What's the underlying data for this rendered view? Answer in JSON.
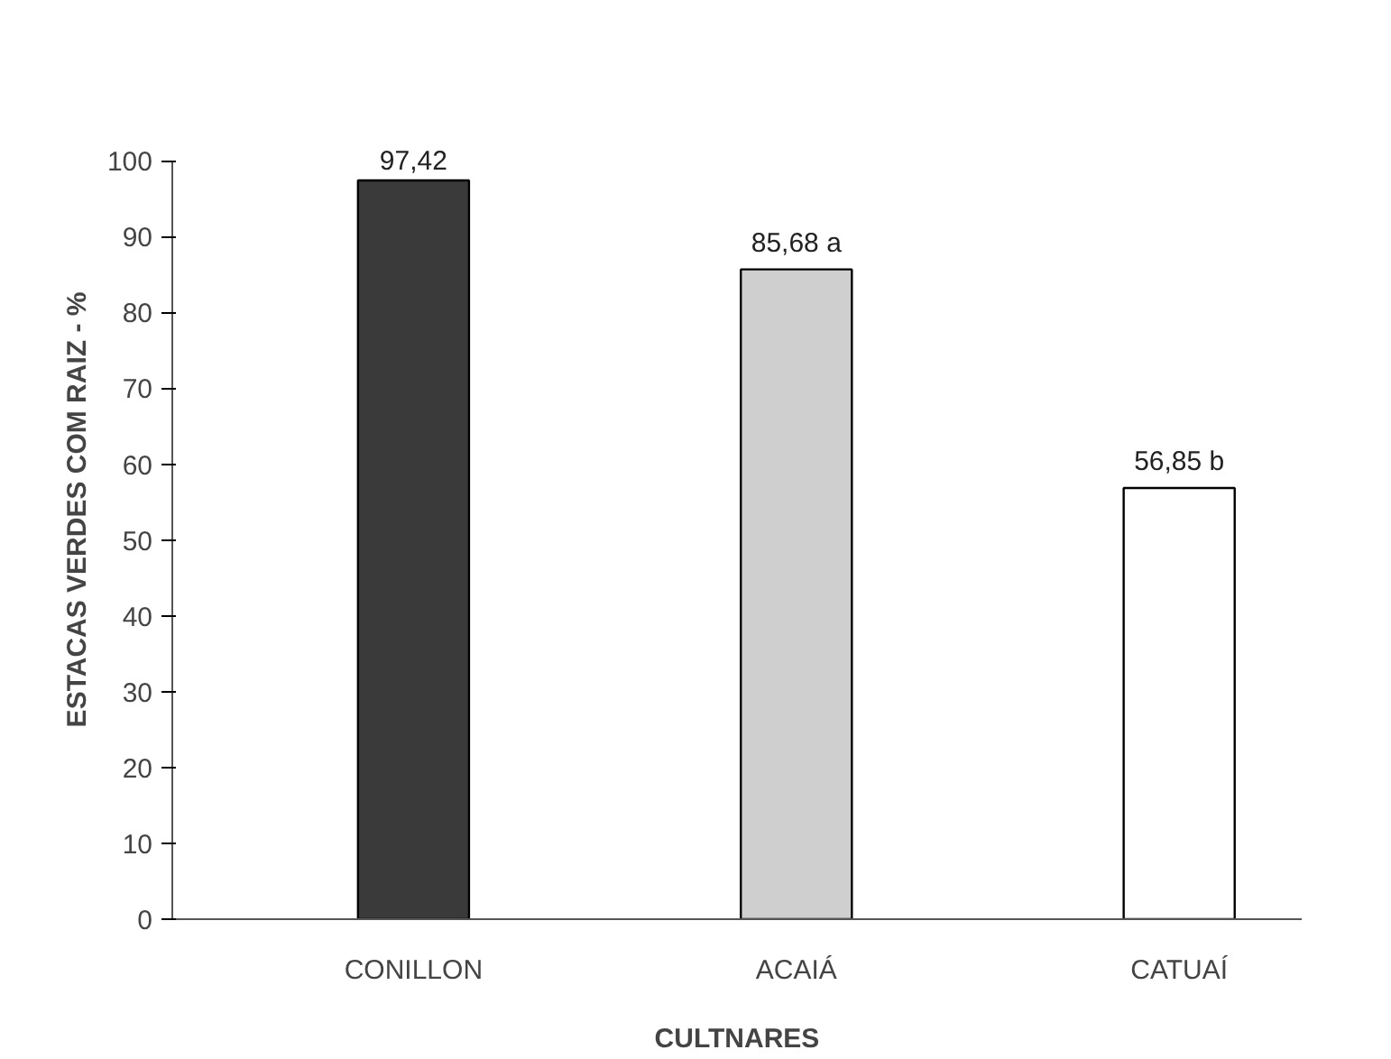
{
  "chart_data": {
    "type": "bar",
    "xlabel": "CULTNARES",
    "ylabel": "ESTACAS VERDES COM RAIZ - %",
    "categories": [
      "CONILLON",
      "ACAIÁ",
      "CATUAÍ"
    ],
    "values": [
      97.42,
      85.68,
      56.85
    ],
    "colors": [
      "#3a3a3a",
      "#cfcfcf",
      "#ffffff"
    ],
    "value_labels": [
      "97,42",
      "85,68 a",
      "56,85 b"
    ],
    "ylim": [
      0,
      100
    ],
    "yticks": [
      0,
      10,
      20,
      30,
      40,
      50,
      60,
      70,
      80,
      90,
      100
    ],
    "grid": false
  }
}
